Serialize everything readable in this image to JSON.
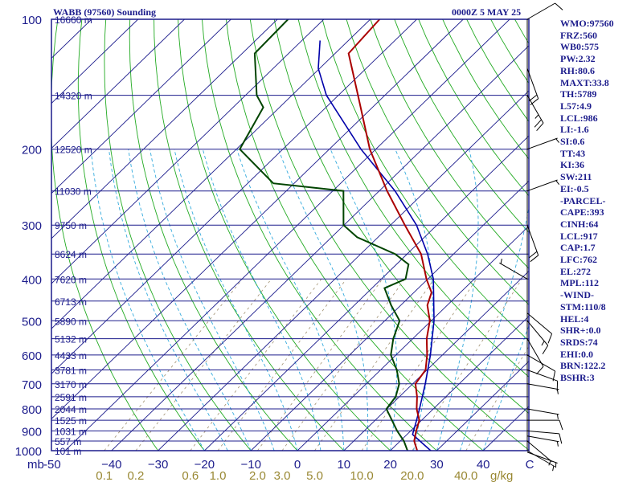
{
  "title": {
    "station": "WABB (97560) Sounding",
    "time": "0000Z  5 MAY 25"
  },
  "indices": [
    "WMO:97560",
    "FRZ:560",
    "WB0:575",
    "PW:2.32",
    "RH:80.6",
    "MAXT:33.8",
    "TH:5789",
    "L57:4.9",
    "LCL:986",
    "LI:-1.6",
    "SI:0.6",
    "TT:43",
    "KI:36",
    "SW:211",
    "EI:-0.5",
    "-PARCEL-",
    "CAPE:393",
    "CINH:64",
    "LCL:917",
    "CAP:1.7",
    "LFC:762",
    "EL:272",
    "MPL:112",
    "-WIND-",
    "STM:110/8",
    "HEL:4",
    "SHR+:0.0",
    "SRDS:74",
    "EHI:0.0",
    "BRN:122.2",
    "BSHR:3"
  ],
  "colors": {
    "frame": "#1c1c8c",
    "isotherm": "#1c1c8c",
    "dry_adiabat": "#22aa22",
    "moist_adiabat": "#33aadd",
    "mixing_ratio": "#a09070",
    "temperature": "#aa0000",
    "dewpoint": "#004400",
    "parcel": "#0000aa",
    "label": "#1c1c8c",
    "mixing_label": "#998833"
  },
  "chart_data": {
    "type": "skew-t",
    "y_unit_label": "mb",
    "pressure_levels": [
      {
        "p": 100,
        "label": "100"
      },
      {
        "p": 200,
        "label": "200"
      },
      {
        "p": 300,
        "label": "300"
      },
      {
        "p": 400,
        "label": "400"
      },
      {
        "p": 500,
        "label": "500"
      },
      {
        "p": 600,
        "label": "600"
      },
      {
        "p": 700,
        "label": "700"
      },
      {
        "p": 800,
        "label": "800"
      },
      {
        "p": 900,
        "label": "900"
      },
      {
        "p": 1000,
        "label": "1000"
      }
    ],
    "x_ticks": [
      {
        "t": -50,
        "label": "-50"
      },
      {
        "t": -40,
        "label": "−40"
      },
      {
        "t": -30,
        "label": "−30"
      },
      {
        "t": -20,
        "label": "−20"
      },
      {
        "t": -10,
        "label": "−10"
      },
      {
        "t": 0,
        "label": "0"
      },
      {
        "t": 10,
        "label": "10"
      },
      {
        "t": 20,
        "label": "20"
      },
      {
        "t": 30,
        "label": "30"
      },
      {
        "t": 40,
        "label": "40"
      },
      {
        "t": 50,
        "label": "C"
      }
    ],
    "mixing_ratio_labels": [
      {
        "w": 0.1,
        "label": "0.1"
      },
      {
        "w": 0.2,
        "label": "0.2"
      },
      {
        "w": 0.6,
        "label": "0.6"
      },
      {
        "w": 1.0,
        "label": "1.0"
      },
      {
        "w": 2.0,
        "label": "2.0"
      },
      {
        "w": 3.0,
        "label": "3.0"
      },
      {
        "w": 5.0,
        "label": "5.0"
      },
      {
        "w": 10.0,
        "label": "10.0"
      },
      {
        "w": 20.0,
        "label": "20.0"
      },
      {
        "w": 40.0,
        "label": "40.0"
      }
    ],
    "mixing_ratio_unit": "g/kg",
    "height_labels": [
      {
        "p": 100,
        "label": "16660 m"
      },
      {
        "p": 150,
        "label": "14320 m"
      },
      {
        "p": 200,
        "label": "12520 m"
      },
      {
        "p": 250,
        "label": "11030 m"
      },
      {
        "p": 300,
        "label": "9750 m"
      },
      {
        "p": 350,
        "label": "8624 m"
      },
      {
        "p": 400,
        "label": "7620 m"
      },
      {
        "p": 450,
        "label": "6713 m"
      },
      {
        "p": 500,
        "label": "5890 m"
      },
      {
        "p": 550,
        "label": "5132 m"
      },
      {
        "p": 600,
        "label": "4433 m"
      },
      {
        "p": 650,
        "label": "3781 m"
      },
      {
        "p": 700,
        "label": "3170 m"
      },
      {
        "p": 750,
        "label": "2591 m"
      },
      {
        "p": 800,
        "label": "2044 m"
      },
      {
        "p": 850,
        "label": "1525 m"
      },
      {
        "p": 900,
        "label": "1031 m"
      },
      {
        "p": 950,
        "label": "557 m"
      },
      {
        "p": 1000,
        "label": "101 m"
      }
    ],
    "temperature": [
      {
        "p": 1008,
        "t": 26.4
      },
      {
        "p": 1000,
        "t": 25.8
      },
      {
        "p": 950,
        "t": 23.0
      },
      {
        "p": 900,
        "t": 21.2
      },
      {
        "p": 850,
        "t": 19.5
      },
      {
        "p": 800,
        "t": 16.4
      },
      {
        "p": 750,
        "t": 13.8
      },
      {
        "p": 700,
        "t": 10.6
      },
      {
        "p": 650,
        "t": 9.7
      },
      {
        "p": 600,
        "t": 6.7
      },
      {
        "p": 550,
        "t": 3.0
      },
      {
        "p": 500,
        "t": -0.3
      },
      {
        "p": 460,
        "t": -4.3
      },
      {
        "p": 430,
        "t": -6.2
      },
      {
        "p": 400,
        "t": -10.3
      },
      {
        "p": 350,
        "t": -17.0
      },
      {
        "p": 300,
        "t": -26.9
      },
      {
        "p": 250,
        "t": -38.3
      },
      {
        "p": 200,
        "t": -51.3
      },
      {
        "p": 150,
        "t": -65.8
      },
      {
        "p": 120,
        "t": -77.1
      },
      {
        "p": 100,
        "t": -78.0
      }
    ],
    "dewpoint": [
      {
        "p": 1008,
        "t": 24.4
      },
      {
        "p": 1000,
        "t": 23.7
      },
      {
        "p": 950,
        "t": 20.8
      },
      {
        "p": 900,
        "t": 17.1
      },
      {
        "p": 850,
        "t": 13.6
      },
      {
        "p": 800,
        "t": 9.9
      },
      {
        "p": 750,
        "t": 9.2
      },
      {
        "p": 700,
        "t": 7.1
      },
      {
        "p": 650,
        "t": 3.5
      },
      {
        "p": 600,
        "t": -1.1
      },
      {
        "p": 550,
        "t": -4.2
      },
      {
        "p": 500,
        "t": -6.8
      },
      {
        "p": 460,
        "t": -12.1
      },
      {
        "p": 420,
        "t": -17.3
      },
      {
        "p": 400,
        "t": -14.8
      },
      {
        "p": 370,
        "t": -17.4
      },
      {
        "p": 350,
        "t": -22.6
      },
      {
        "p": 320,
        "t": -34.5
      },
      {
        "p": 300,
        "t": -40.1
      },
      {
        "p": 250,
        "t": -47.7
      },
      {
        "p": 240,
        "t": -64.5
      },
      {
        "p": 200,
        "t": -79.3
      },
      {
        "p": 160,
        "t": -83.5
      },
      {
        "p": 150,
        "t": -87.6
      },
      {
        "p": 120,
        "t": -97.3
      },
      {
        "p": 100,
        "t": -97.7
      }
    ],
    "parcel": [
      {
        "p": 1008,
        "t": 29.4
      },
      {
        "p": 1000,
        "t": 28.7
      },
      {
        "p": 917,
        "t": 21.2
      },
      {
        "p": 850,
        "t": 18.9
      },
      {
        "p": 800,
        "t": 17.0
      },
      {
        "p": 700,
        "t": 12.7
      },
      {
        "p": 600,
        "t": 7.4
      },
      {
        "p": 500,
        "t": 0.6
      },
      {
        "p": 400,
        "t": -8.8
      },
      {
        "p": 350,
        "t": -15.6
      },
      {
        "p": 300,
        "t": -24.4
      },
      {
        "p": 250,
        "t": -36.6
      },
      {
        "p": 200,
        "t": -53.2
      },
      {
        "p": 150,
        "t": -72.6
      },
      {
        "p": 130,
        "t": -80.3
      },
      {
        "p": 112,
        "t": -86.1
      }
    ],
    "wind_barbs": [
      {
        "p": 1008,
        "dir": 110,
        "spd": 5
      },
      {
        "p": 1000,
        "dir": 120,
        "spd": 5
      },
      {
        "p": 950,
        "dir": 130,
        "spd": 5
      },
      {
        "p": 925,
        "dir": 100,
        "spd": 5
      },
      {
        "p": 900,
        "dir": 95,
        "spd": 10
      },
      {
        "p": 850,
        "dir": 90,
        "spd": 10
      },
      {
        "p": 800,
        "dir": 100,
        "spd": 5
      },
      {
        "p": 700,
        "dir": 100,
        "spd": 5
      },
      {
        "p": 650,
        "dir": 110,
        "spd": 10
      },
      {
        "p": 600,
        "dir": 120,
        "spd": 10
      },
      {
        "p": 550,
        "dir": 150,
        "spd": 10
      },
      {
        "p": 500,
        "dir": 140,
        "spd": 15
      },
      {
        "p": 480,
        "dir": 130,
        "spd": 10
      },
      {
        "p": 400,
        "dir": 300,
        "spd": 5
      },
      {
        "p": 300,
        "dir": 160,
        "spd": 20
      },
      {
        "p": 250,
        "dir": 70,
        "spd": 5
      },
      {
        "p": 200,
        "dir": 70,
        "spd": 5
      },
      {
        "p": 150,
        "dir": 150,
        "spd": 25
      },
      {
        "p": 130,
        "dir": 160,
        "spd": 20
      },
      {
        "p": 100,
        "dir": 60,
        "spd": 10
      }
    ]
  }
}
